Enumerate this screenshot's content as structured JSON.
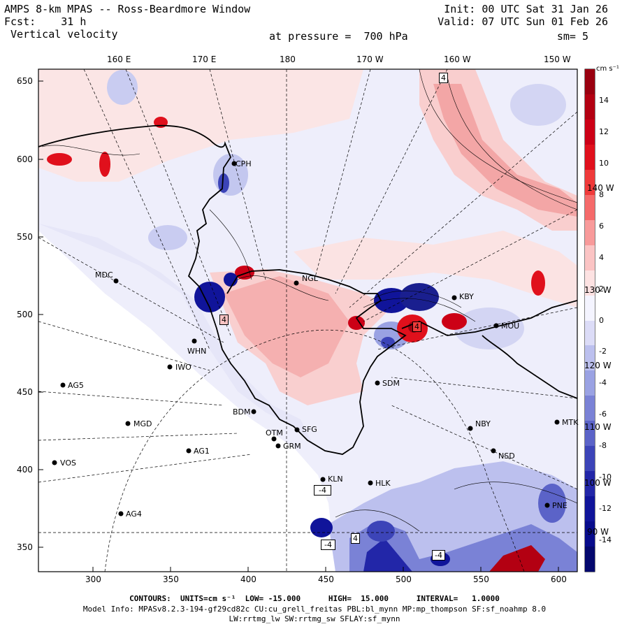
{
  "header": {
    "title": "AMPS 8-km MPAS -- Ross-Beardmore Window",
    "fcst_label": "Fcst:",
    "fcst_value": "31 h",
    "field": "Vertical velocity",
    "pressure": "at pressure =  700 hPa",
    "init": "Init: 00 UTC Sat 31 Jan 26",
    "valid": "Valid: 07 UTC Sun 01 Feb 26",
    "smoothing": "sm= 5"
  },
  "axes": {
    "left_ticks": [
      "650",
      "600",
      "550",
      "500",
      "450",
      "400",
      "350"
    ],
    "bottom_ticks": [
      "300",
      "350",
      "400",
      "450",
      "500",
      "550",
      "600"
    ],
    "top_lon": [
      "160 E",
      "170 E",
      "180",
      "170 W",
      "160 W",
      "150 W"
    ],
    "right_lon": [
      "140 W",
      "130 W",
      "120 W",
      "110 W",
      "100 W",
      "90 W"
    ]
  },
  "colorbar": {
    "unit": "cm s⁻¹",
    "labels": [
      "14",
      "12",
      "10",
      "8",
      "6",
      "4",
      "2",
      "0",
      "-2",
      "-4",
      "-6",
      "-8",
      "-10",
      "-12",
      "-14"
    ],
    "colors": [
      "#9a0010",
      "#b30012",
      "#cc0016",
      "#e0101c",
      "#ef3a3a",
      "#f56a6a",
      "#f89a9a",
      "#fbc4c4",
      "#fde2e2",
      "#f4f4ff",
      "#dcdcf7",
      "#bcc0ee",
      "#9aa2e3",
      "#7a82d6",
      "#5b63c8",
      "#3c44b8",
      "#2226a8",
      "#10149a",
      "#080c8c",
      "#04086e"
    ]
  },
  "stations": [
    {
      "name": "MDC"
    },
    {
      "name": "NGL"
    },
    {
      "name": "WHN"
    },
    {
      "name": "IWO"
    },
    {
      "name": "AG5"
    },
    {
      "name": "MGD"
    },
    {
      "name": "AG1"
    },
    {
      "name": "VOS"
    },
    {
      "name": "AG4"
    },
    {
      "name": "BDM"
    },
    {
      "name": "OTM"
    },
    {
      "name": "SFG"
    },
    {
      "name": "GRM"
    },
    {
      "name": "KLN"
    },
    {
      "name": "HLK"
    },
    {
      "name": "SDM"
    },
    {
      "name": "NBY"
    },
    {
      "name": "NSD"
    },
    {
      "name": "MTK"
    },
    {
      "name": "PNE"
    },
    {
      "name": "MOU"
    },
    {
      "name": "KBY"
    },
    {
      "name": "CPH"
    }
  ],
  "box_labels": [
    "4",
    "4",
    "4",
    "-4",
    "-4",
    "4",
    "-4"
  ],
  "footer": {
    "contours": "CONTOURS:  UNITS=cm s⁻¹  LOW= -15.000      HIGH=  15.000      INTERVAL=   1.0000",
    "model1": "Model Info: MPASv8.2.3-194-gf29cd82c CU:cu_grell_freitas PBL:bl_mynn MP:mp_thompson SF:sf_noahmp 8.0",
    "model2": "LW:rrtmg_lw SW:rrtmg_sw SFLAY:sf_mynn"
  }
}
